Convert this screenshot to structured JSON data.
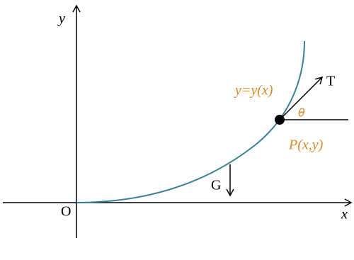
{
  "labels": {
    "y_axis": "y",
    "x_axis": "x",
    "origin": "O",
    "curve": "y=y(x)",
    "tangent": "T",
    "angle": "θ",
    "point": "P(x,y)",
    "gravity": "G"
  }
}
